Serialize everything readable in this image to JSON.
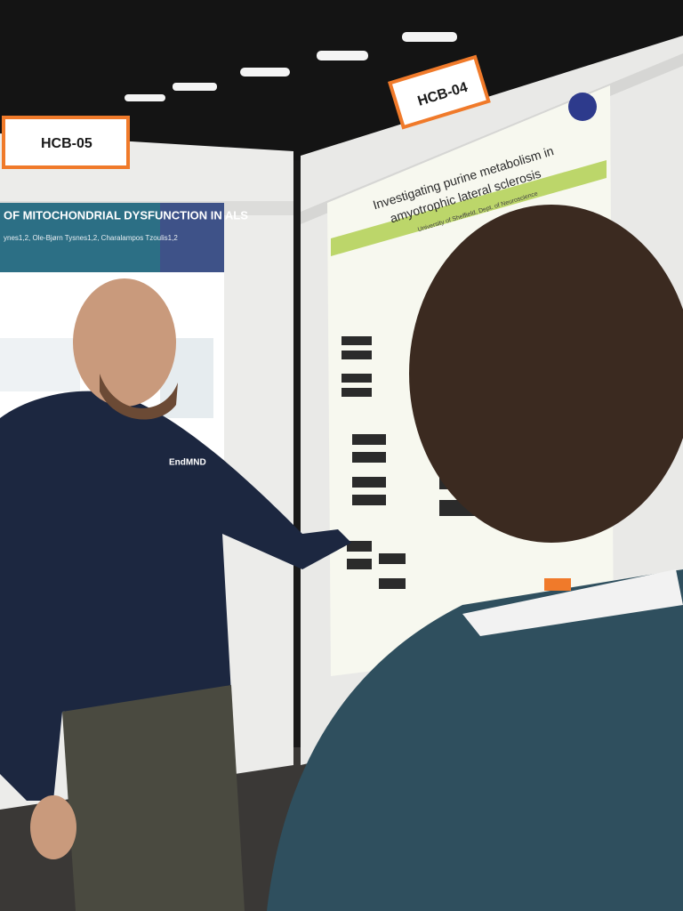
{
  "signs": [
    {
      "label": "HCB-05"
    },
    {
      "label": "HCB-04"
    }
  ],
  "posters": [
    {
      "title": "OF MITOCHONDRIAL DYSFUNCTION IN ALS",
      "authors": "ynes1,2, Ole-Bjørn Tysnes1,2, Charalampos Tzoulis1,2"
    },
    {
      "title_lines": [
        "Investigating purine metabolism in",
        "amyotrophic lateral sclerosis"
      ],
      "affiliation": "University of Sheffield, Dept. of Neuroscience"
    }
  ],
  "hoodie_text": "EndMND"
}
